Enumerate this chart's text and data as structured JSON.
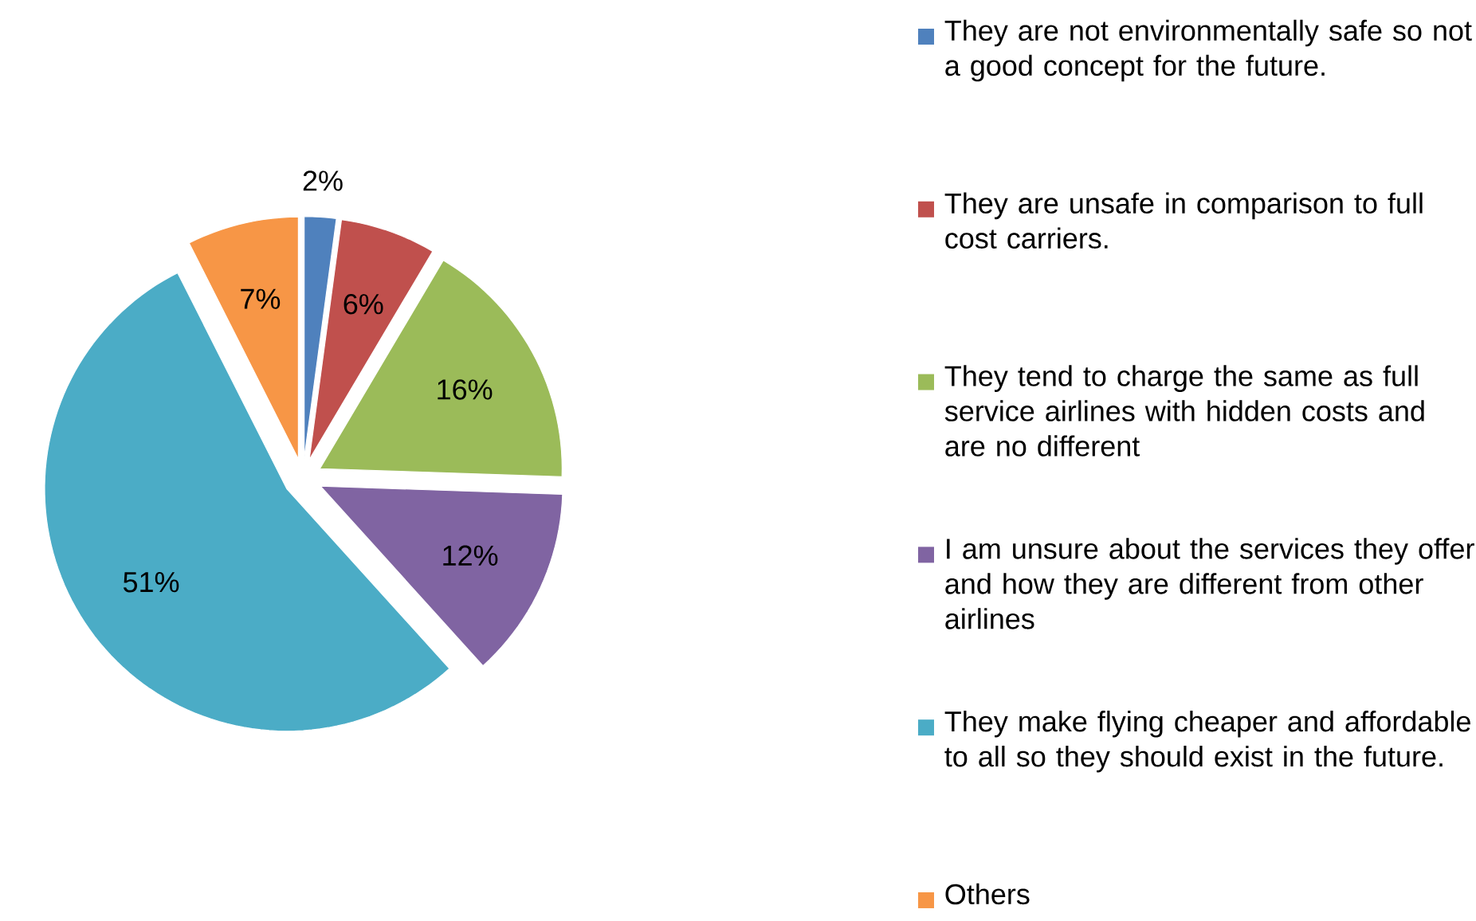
{
  "chart_data": {
    "type": "pie",
    "categories": [
      "They are not environmentally safe so not a good concept for the future.",
      "They are unsafe in comparison to full cost carriers.",
      "They tend to charge the same as full service airlines with hidden costs and are no different",
      "I am unsure about the services they offer and how they are different from other airlines",
      "They make flying cheaper and affordable to all so they should exist in the future.",
      "Others"
    ],
    "values": [
      2,
      6,
      16,
      12,
      51,
      7
    ],
    "value_labels": [
      "2%",
      "6%",
      "16%",
      "12%",
      "51%",
      "7%"
    ],
    "colors": [
      "#4f81bd",
      "#c0504d",
      "#9bbb59",
      "#8064a2",
      "#4bacc6",
      "#f79646"
    ],
    "legend": "right"
  }
}
